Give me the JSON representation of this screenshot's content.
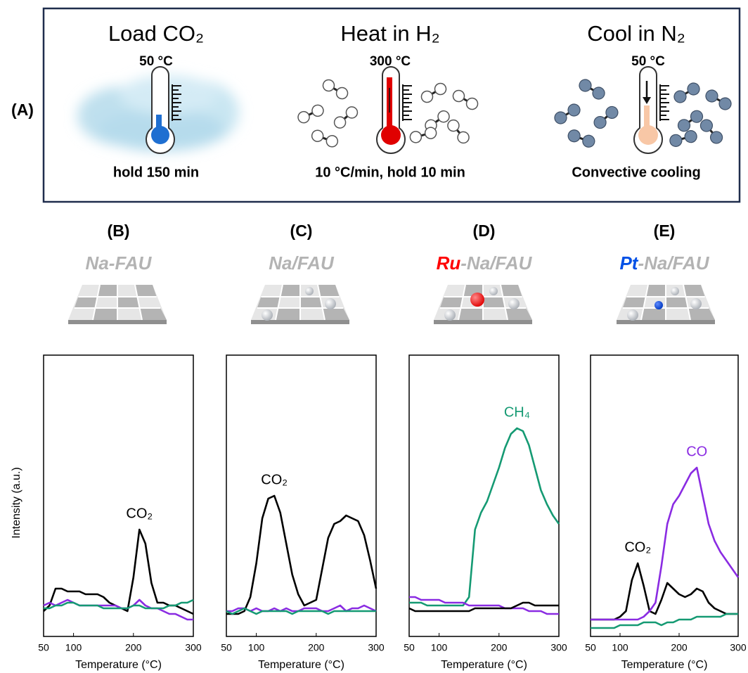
{
  "panel_a": {
    "label": "(A)",
    "steps": [
      {
        "title": "Load CO₂",
        "temperature": "50 °C",
        "note": "hold 150 min"
      },
      {
        "title": "Heat in H₂",
        "temperature": "300 °C",
        "note": "10 °C/min, hold 10 min"
      },
      {
        "title": "Cool in N₂",
        "temperature": "50 °C",
        "note": "Convective cooling"
      }
    ]
  },
  "chart_data": [
    {
      "type": "line",
      "panel_label": "(B)",
      "title": "Na-FAU",
      "title_color": "#b3b3b3",
      "xlabel": "Temperature (°C)",
      "ylabel": "Intensity (a.u.)",
      "xlim": [
        50,
        300
      ],
      "xticks": [
        50,
        100,
        200,
        300
      ],
      "ylim": [
        0,
        100
      ],
      "x": [
        50,
        60,
        70,
        80,
        90,
        100,
        110,
        120,
        130,
        140,
        150,
        160,
        170,
        180,
        190,
        200,
        210,
        220,
        230,
        240,
        250,
        260,
        270,
        280,
        290,
        300
      ],
      "series": [
        {
          "name": "CO₂",
          "color": "#000000",
          "values": [
            9,
            11,
            17,
            17,
            16,
            16,
            16,
            15,
            15,
            15,
            14,
            12,
            11,
            10,
            9,
            21,
            38,
            33,
            19,
            12,
            12,
            11,
            11,
            10,
            9,
            8
          ]
        },
        {
          "color": "#8a2be2",
          "values": [
            11,
            12,
            11,
            12,
            13,
            12,
            11,
            11,
            11,
            11,
            11,
            11,
            11,
            10,
            10,
            11,
            13,
            11,
            10,
            10,
            9,
            8,
            8,
            7,
            6,
            6
          ]
        },
        {
          "color": "#159a73",
          "values": [
            10,
            10,
            11,
            11,
            12,
            12,
            11,
            11,
            11,
            11,
            10,
            10,
            10,
            10,
            10,
            11,
            11,
            10,
            10,
            10,
            10,
            11,
            11,
            12,
            12,
            13
          ]
        }
      ]
    },
    {
      "type": "line",
      "panel_label": "(C)",
      "title": "Na/FAU",
      "title_color": "#b3b3b3",
      "xlabel": "Temperature (°C)",
      "xlim": [
        50,
        300
      ],
      "xticks": [
        50,
        100,
        200,
        300
      ],
      "ylim": [
        0,
        100
      ],
      "x": [
        50,
        60,
        70,
        80,
        90,
        100,
        110,
        120,
        130,
        140,
        150,
        160,
        170,
        180,
        190,
        200,
        210,
        220,
        230,
        240,
        250,
        260,
        270,
        280,
        290,
        300
      ],
      "series": [
        {
          "name": "CO₂",
          "color": "#000000",
          "values": [
            8,
            8,
            8,
            9,
            14,
            26,
            42,
            49,
            50,
            44,
            33,
            22,
            15,
            11,
            12,
            13,
            24,
            35,
            40,
            41,
            43,
            42,
            41,
            36,
            27,
            17
          ]
        },
        {
          "color": "#8a2be2",
          "values": [
            9,
            9,
            10,
            10,
            9,
            10,
            9,
            9,
            10,
            9,
            10,
            9,
            9,
            10,
            10,
            10,
            9,
            9,
            10,
            11,
            9,
            10,
            10,
            11,
            10,
            9
          ]
        },
        {
          "color": "#159a73",
          "values": [
            9,
            8,
            9,
            10,
            9,
            8,
            9,
            9,
            9,
            9,
            9,
            8,
            9,
            9,
            9,
            9,
            9,
            8,
            9,
            9,
            9,
            9,
            9,
            9,
            9,
            9
          ]
        }
      ]
    },
    {
      "type": "line",
      "panel_label": "(D)",
      "title_prefix": "Ru",
      "title_prefix_color": "#ff0000",
      "title": "-Na/FAU",
      "title_color": "#b3b3b3",
      "xlabel": "Temperature (°C)",
      "xlim": [
        50,
        300
      ],
      "xticks": [
        50,
        100,
        200,
        300
      ],
      "ylim": [
        0,
        100
      ],
      "x": [
        50,
        60,
        70,
        80,
        90,
        100,
        110,
        120,
        130,
        140,
        150,
        160,
        170,
        180,
        190,
        200,
        210,
        220,
        230,
        240,
        250,
        260,
        270,
        280,
        290,
        300
      ],
      "series": [
        {
          "name": "CH₄",
          "color": "#159a73",
          "values": [
            12,
            12,
            12,
            11,
            11,
            11,
            11,
            11,
            11,
            11,
            14,
            38,
            44,
            48,
            54,
            60,
            67,
            72,
            74,
            73,
            68,
            60,
            52,
            47,
            43,
            40
          ]
        },
        {
          "color": "#8a2be2",
          "values": [
            14,
            14,
            13,
            13,
            13,
            13,
            12,
            12,
            12,
            12,
            11,
            11,
            11,
            11,
            11,
            11,
            10,
            10,
            10,
            10,
            9,
            9,
            9,
            8,
            8,
            8
          ]
        },
        {
          "color": "#000000",
          "values": [
            10,
            9,
            9,
            9,
            9,
            9,
            9,
            9,
            9,
            9,
            9,
            10,
            10,
            10,
            10,
            10,
            10,
            10,
            11,
            12,
            12,
            11,
            11,
            11,
            11,
            11
          ]
        }
      ]
    },
    {
      "type": "line",
      "panel_label": "(E)",
      "title_prefix": "Pt",
      "title_prefix_color": "#0050e6",
      "title": "-Na/FAU",
      "title_color": "#b3b3b3",
      "xlabel": "Temperature (°C)",
      "xlim": [
        50,
        300
      ],
      "xticks": [
        50,
        100,
        200,
        300
      ],
      "ylim": [
        0,
        100
      ],
      "x": [
        50,
        60,
        70,
        80,
        90,
        100,
        110,
        120,
        130,
        140,
        150,
        160,
        170,
        180,
        190,
        200,
        210,
        220,
        230,
        240,
        250,
        260,
        270,
        280,
        290,
        300
      ],
      "series": [
        {
          "name": "CO₂",
          "color": "#000000",
          "values": [
            6,
            6,
            6,
            6,
            6,
            7,
            9,
            20,
            26,
            18,
            9,
            8,
            13,
            19,
            17,
            15,
            14,
            15,
            17,
            16,
            12,
            10,
            9,
            8,
            8,
            8
          ]
        },
        {
          "name": "CO",
          "color": "#8a2be2",
          "values": [
            6,
            6,
            6,
            6,
            6,
            6,
            6,
            6,
            6,
            7,
            9,
            12,
            25,
            40,
            47,
            50,
            54,
            58,
            60,
            50,
            40,
            34,
            30,
            27,
            24,
            21
          ]
        },
        {
          "color": "#159a73",
          "values": [
            3,
            3,
            3,
            3,
            3,
            4,
            4,
            4,
            4,
            5,
            5,
            5,
            4,
            5,
            5,
            6,
            6,
            6,
            7,
            7,
            7,
            7,
            7,
            8,
            8,
            8
          ]
        }
      ]
    }
  ]
}
